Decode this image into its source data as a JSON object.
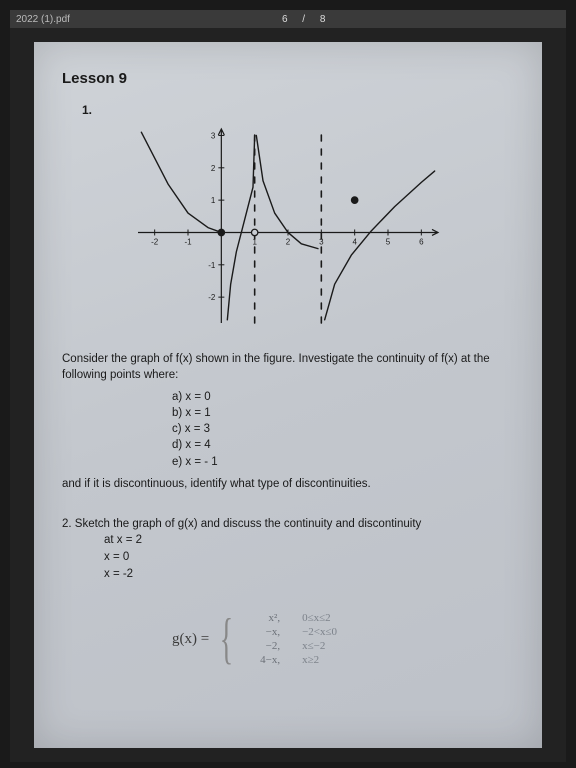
{
  "header": {
    "filename_fragment": "2022 (1).pdf",
    "page_nav": "6 / 8"
  },
  "lesson": {
    "title": "Lesson 9",
    "q1_num": "1.",
    "q1_prompt": "Consider the graph of f(x) shown in the figure. Investigate the continuity of f(x) at the following points where:",
    "q1_points": {
      "a": "a)  x = 0",
      "b": "b)  x = 1",
      "c": "c)  x = 3",
      "d": "d)  x = 4",
      "e": "e)  x = - 1"
    },
    "q1_followup": "and if it is discontinuous, identify what type of discontinuities.",
    "q2_prompt": "2.  Sketch the graph of g(x) and discuss the continuity and discontinuity",
    "q2_lines": {
      "l1": "at x = 2",
      "l2": "x = 0",
      "l3": "x = -2"
    },
    "piecewise": {
      "lhs": "g(x) =",
      "rows": [
        {
          "expr": "x²,",
          "cond": "0≤x≤2"
        },
        {
          "expr": "−x,",
          "cond": "−2<x≤0"
        },
        {
          "expr": "−2,",
          "cond": "x≤−2"
        },
        {
          "expr": "4−x,",
          "cond": "x≥2"
        }
      ]
    }
  },
  "chart": {
    "type": "line",
    "xlim": [
      -2.5,
      6.5
    ],
    "ylim": [
      -2.8,
      3.2
    ],
    "xticks": [
      -2,
      -1,
      1,
      2,
      3,
      4,
      5,
      6
    ],
    "yticks": [
      -2,
      -1,
      1,
      2,
      3
    ],
    "axis_color": "#1a1a1a",
    "curve_color": "#1a1a1a",
    "asymptote_color": "#1a1a1a",
    "background_color": "transparent",
    "line_width": 1.4,
    "tick_len": 3,
    "curves": {
      "left_branch": [
        [
          -2.4,
          3.1
        ],
        [
          -1.6,
          1.5
        ],
        [
          -1.0,
          0.6
        ],
        [
          -0.4,
          0.15
        ],
        [
          0,
          0
        ]
      ],
      "mid_branch_left": [
        [
          0.18,
          -2.7
        ],
        [
          0.28,
          -1.6
        ],
        [
          0.45,
          -0.6
        ],
        [
          0.7,
          0.4
        ],
        [
          0.95,
          1.4
        ],
        [
          1.0,
          3.0
        ]
      ],
      "mid_branch_right": [
        [
          1.05,
          3.0
        ],
        [
          1.25,
          1.6
        ],
        [
          1.6,
          0.6
        ],
        [
          2.0,
          0.0
        ],
        [
          2.4,
          -0.35
        ],
        [
          2.9,
          -0.5
        ]
      ],
      "right_branch": [
        [
          3.1,
          -2.7
        ],
        [
          3.4,
          -1.6
        ],
        [
          3.9,
          -0.7
        ],
        [
          4.5,
          0.05
        ],
        [
          5.2,
          0.8
        ],
        [
          6.0,
          1.55
        ],
        [
          6.4,
          1.9
        ]
      ]
    },
    "asymptotes_x": [
      1,
      3
    ],
    "points": [
      {
        "x": 0,
        "y": 0,
        "fill": "filled"
      },
      {
        "x": 1,
        "y": 0,
        "fill": "open"
      },
      {
        "x": 4,
        "y": 1,
        "fill": "filled"
      }
    ]
  }
}
